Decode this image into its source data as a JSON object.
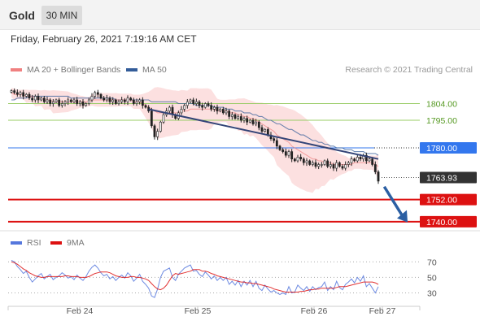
{
  "header": {
    "title": "Gold",
    "timeframe": "30 MIN",
    "timestamp": "Friday, February 26, 2021 7:19:16 AM CET"
  },
  "legend": {
    "ma_bb": {
      "label": "MA 20 + Bollinger Bands",
      "color": "#f08080"
    },
    "ma50": {
      "label": "MA 50",
      "color": "#335c99"
    },
    "copyright": "Research © 2021 Trading Central"
  },
  "rsi_legend": {
    "rsi": {
      "label": "RSI",
      "color": "#5577dd"
    },
    "ma9": {
      "label": "9MA",
      "color": "#dd1111"
    }
  },
  "chart_data": [
    {
      "type": "candlestick",
      "instrument": "Gold",
      "interval": "30 MIN",
      "x_ticks": [
        "Feb 24",
        "Feb 25",
        "Feb 26",
        "Feb 27"
      ],
      "ylim": [
        1736,
        1817
      ],
      "levels": [
        {
          "value": 1804.0,
          "label": "1804.00",
          "kind": "resistance",
          "color": "#99cc66"
        },
        {
          "value": 1795.0,
          "label": "1795.00",
          "kind": "resistance",
          "color": "#99cc66"
        },
        {
          "value": 1780.0,
          "label": "1780.00",
          "kind": "pivot",
          "color": "#3377ee"
        },
        {
          "value": 1763.93,
          "label": "1763.93",
          "kind": "last",
          "color": "#333333"
        },
        {
          "value": 1752.0,
          "label": "1752.00",
          "kind": "support",
          "color": "#dd1111"
        },
        {
          "value": 1740.0,
          "label": "1740.00",
          "kind": "support",
          "color": "#dd1111"
        }
      ],
      "closes": [
        1811,
        1810,
        1809,
        1810,
        1808,
        1809,
        1807,
        1806,
        1808,
        1806,
        1807,
        1805,
        1806,
        1804,
        1805,
        1806,
        1803,
        1804,
        1805,
        1806,
        1805,
        1806,
        1804,
        1805,
        1803,
        1804,
        1806,
        1808,
        1810,
        1809,
        1807,
        1806,
        1807,
        1805,
        1806,
        1804,
        1805,
        1806,
        1805,
        1807,
        1806,
        1804,
        1805,
        1806,
        1803,
        1802,
        1800,
        1792,
        1786,
        1789,
        1794,
        1798,
        1800,
        1802,
        1798,
        1796,
        1799,
        1801,
        1803,
        1805,
        1806,
        1804,
        1805,
        1803,
        1802,
        1804,
        1803,
        1801,
        1802,
        1800,
        1801,
        1799,
        1800,
        1797,
        1798,
        1796,
        1797,
        1795,
        1796,
        1794,
        1795,
        1793,
        1794,
        1791,
        1789,
        1790,
        1787,
        1785,
        1784,
        1781,
        1779,
        1778,
        1776,
        1778,
        1774,
        1773,
        1775,
        1774,
        1772,
        1773,
        1771,
        1772,
        1770,
        1771,
        1771,
        1773,
        1770,
        1771,
        1769,
        1772,
        1770,
        1769,
        1771,
        1772,
        1774,
        1773,
        1775,
        1774,
        1776,
        1773,
        1774,
        1771,
        1767,
        1762
      ],
      "ma20": [
        1810,
        1809,
        1809,
        1809,
        1809,
        1808,
        1808,
        1808,
        1807,
        1807,
        1807,
        1806,
        1806,
        1806,
        1805,
        1805,
        1805,
        1805,
        1805,
        1805,
        1805,
        1805,
        1805,
        1805,
        1805,
        1805,
        1805,
        1806,
        1806,
        1806,
        1806,
        1806,
        1806,
        1806,
        1806,
        1806,
        1806,
        1806,
        1806,
        1806,
        1806,
        1805,
        1805,
        1805,
        1804,
        1803,
        1802,
        1801,
        1800,
        1799,
        1799,
        1799,
        1799,
        1799,
        1799,
        1799,
        1799,
        1800,
        1800,
        1800,
        1801,
        1801,
        1801,
        1801,
        1801,
        1801,
        1801,
        1801,
        1801,
        1800,
        1800,
        1800,
        1800,
        1799,
        1799,
        1799,
        1798,
        1798,
        1797,
        1797,
        1796,
        1796,
        1795,
        1794,
        1793,
        1792,
        1791,
        1790,
        1789,
        1787,
        1786,
        1785,
        1784,
        1783,
        1781,
        1780,
        1779,
        1778,
        1777,
        1776,
        1775,
        1774,
        1774,
        1773,
        1773,
        1772,
        1772,
        1772,
        1771,
        1771,
        1771,
        1771,
        1771,
        1771,
        1771,
        1772,
        1772,
        1772,
        1772,
        1772,
        1772,
        1772,
        1771,
        1770
      ],
      "ma50": [
        1806,
        1806,
        1807,
        1807,
        1807,
        1807,
        1808,
        1808,
        1808,
        1808,
        1808,
        1808,
        1808,
        1808,
        1808,
        1808,
        1808,
        1808,
        1808,
        1808,
        1807,
        1807,
        1807,
        1807,
        1807,
        1807,
        1807,
        1807,
        1807,
        1807,
        1807,
        1807,
        1807,
        1807,
        1807,
        1806,
        1806,
        1806,
        1806,
        1806,
        1806,
        1806,
        1806,
        1806,
        1806,
        1806,
        1806,
        1805,
        1805,
        1805,
        1805,
        1805,
        1805,
        1805,
        1805,
        1805,
        1804,
        1804,
        1804,
        1804,
        1804,
        1804,
        1803,
        1803,
        1803,
        1803,
        1803,
        1803,
        1802,
        1802,
        1802,
        1802,
        1801,
        1801,
        1801,
        1800,
        1800,
        1800,
        1799,
        1799,
        1799,
        1798,
        1798,
        1797,
        1797,
        1796,
        1795,
        1795,
        1794,
        1793,
        1793,
        1792,
        1791,
        1790,
        1790,
        1789,
        1788,
        1787,
        1787,
        1786,
        1785,
        1784,
        1784,
        1783,
        1783,
        1782,
        1782,
        1781,
        1781,
        1780,
        1780,
        1780,
        1779,
        1779,
        1779,
        1778,
        1778,
        1778,
        1778,
        1777,
        1777,
        1777,
        1777,
        1776
      ],
      "trendline": [
        [
          46,
          1801
        ],
        [
          123,
          1774
        ]
      ],
      "projection_arrow": [
        [
          125,
          1759
        ],
        [
          132,
          1741
        ]
      ]
    },
    {
      "type": "line",
      "indicator": "RSI",
      "ylim": [
        20,
        85
      ],
      "y_ticks": [
        70,
        50,
        30
      ],
      "series": [
        {
          "name": "RSI",
          "color": "#5577dd",
          "values": [
            72,
            70,
            64,
            60,
            55,
            58,
            50,
            44,
            48,
            52,
            55,
            48,
            51,
            54,
            47,
            50,
            52,
            56,
            53,
            49,
            51,
            47,
            53,
            49,
            46,
            51,
            58,
            63,
            66,
            62,
            56,
            52,
            54,
            48,
            51,
            46,
            50,
            53,
            49,
            56,
            52,
            45,
            49,
            54,
            45,
            41,
            36,
            26,
            24,
            35,
            50,
            58,
            60,
            62,
            50,
            46,
            54,
            58,
            62,
            64,
            66,
            58,
            59,
            54,
            51,
            57,
            53,
            48,
            52,
            46,
            50,
            46,
            50,
            41,
            45,
            40,
            46,
            38,
            45,
            40,
            46,
            38,
            45,
            36,
            33,
            40,
            35,
            31,
            33,
            30,
            28,
            30,
            28,
            38,
            30,
            31,
            40,
            36,
            33,
            38,
            32,
            38,
            34,
            37,
            38,
            44,
            33,
            38,
            34,
            45,
            37,
            34,
            41,
            44,
            48,
            43,
            50,
            45,
            52,
            38,
            42,
            36,
            30,
            38
          ]
        },
        {
          "name": "9MA",
          "color": "#dd1111",
          "values": [
            70,
            69,
            67,
            64,
            61,
            59,
            56,
            54,
            52,
            51,
            50,
            50,
            51,
            51,
            51,
            51,
            51,
            51,
            52,
            52,
            51,
            51,
            51,
            50,
            50,
            50,
            51,
            53,
            55,
            56,
            57,
            57,
            57,
            56,
            54,
            52,
            51,
            50,
            50,
            50,
            51,
            51,
            50,
            50,
            49,
            48,
            46,
            42,
            38,
            35,
            34,
            36,
            40,
            46,
            52,
            55,
            54,
            55,
            56,
            57,
            58,
            60,
            60,
            60,
            58,
            58,
            57,
            55,
            54,
            52,
            51,
            50,
            49,
            48,
            47,
            46,
            45,
            44,
            44,
            43,
            43,
            42,
            42,
            41,
            40,
            39,
            38,
            37,
            35,
            34,
            33,
            32,
            31,
            31,
            31,
            31,
            31,
            32,
            32,
            33,
            34,
            34,
            35,
            35,
            36,
            36,
            36,
            36,
            36,
            37,
            38,
            38,
            38,
            39,
            40,
            41,
            42,
            43,
            44,
            44,
            44,
            44,
            43,
            41
          ]
        }
      ]
    }
  ]
}
